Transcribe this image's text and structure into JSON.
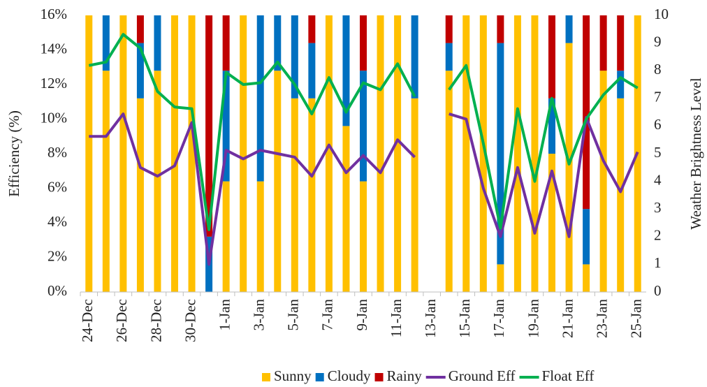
{
  "chart_data": {
    "type": "bar_line",
    "categories": [
      "24-Dec",
      null,
      "26-Dec",
      null,
      "28-Dec",
      null,
      "30-Dec",
      null,
      "1-Jan",
      null,
      "3-Jan",
      null,
      "5-Jan",
      null,
      "7-Jan",
      null,
      "9-Jan",
      null,
      "11-Jan",
      null,
      "13-Jan",
      null,
      "15-Jan",
      null,
      "17-Jan",
      null,
      "19-Jan",
      null,
      "21-Jan",
      null,
      "23-Jan",
      null,
      "25-Jan"
    ],
    "y_label": "Efficiency (%)",
    "y2_label": "Weather Brightness Level",
    "ylim": [
      0,
      16
    ],
    "yticks": [
      {
        "value": 0,
        "label": "0%"
      },
      {
        "value": 2,
        "label": "2%"
      },
      {
        "value": 4,
        "label": "4%"
      },
      {
        "value": 6,
        "label": "6%"
      },
      {
        "value": 8,
        "label": "8%"
      },
      {
        "value": 10,
        "label": "10%"
      },
      {
        "value": 12,
        "label": "12%"
      },
      {
        "value": 14,
        "label": "14%"
      },
      {
        "value": 16,
        "label": "16%"
      }
    ],
    "y2lim": [
      0,
      10
    ],
    "y2ticks": [
      0,
      1,
      2,
      3,
      4,
      5,
      6,
      7,
      8,
      9,
      10
    ],
    "legend": "bottom",
    "series": [
      {
        "name": "Sunny",
        "kind": "bar",
        "axis": "y2",
        "color": "#ffc000",
        "values": [
          10,
          8,
          10,
          7,
          8,
          10,
          10,
          0,
          4,
          10,
          4,
          8,
          7,
          7,
          10,
          6,
          4,
          10,
          10,
          7,
          null,
          8,
          10,
          10,
          1,
          10,
          10,
          5,
          9,
          1,
          8,
          7,
          10
        ]
      },
      {
        "name": "Cloudy",
        "kind": "bar",
        "axis": "y2",
        "color": "#0070c0",
        "values": [
          0,
          2,
          0,
          2,
          2,
          0,
          0,
          2,
          4,
          0,
          6,
          2,
          3,
          2,
          0,
          4,
          4,
          0,
          0,
          3,
          null,
          1,
          0,
          0,
          8,
          0,
          0,
          2,
          1,
          2,
          0,
          1,
          0
        ]
      },
      {
        "name": "Rainy",
        "kind": "bar",
        "axis": "y2",
        "color": "#c00000",
        "values": [
          0,
          0,
          0,
          1,
          0,
          0,
          0,
          8,
          2,
          0,
          0,
          0,
          0,
          1,
          0,
          0,
          2,
          0,
          0,
          0,
          null,
          1,
          0,
          0,
          1,
          0,
          0,
          3,
          0,
          7,
          2,
          2,
          0
        ]
      },
      {
        "name": "Ground Eff",
        "kind": "line",
        "color": "#7030a0",
        "values": [
          9.0,
          9.0,
          10.3,
          7.2,
          6.7,
          7.3,
          9.8,
          1.6,
          8.2,
          7.7,
          8.2,
          8.0,
          7.8,
          6.7,
          8.5,
          6.9,
          7.9,
          6.9,
          8.8,
          7.8,
          null,
          10.3,
          10.0,
          6.0,
          3.2,
          7.2,
          3.4,
          7.0,
          3.2,
          10.1,
          7.6,
          5.8,
          8.1
        ]
      },
      {
        "name": "Float Eff",
        "kind": "line",
        "color": "#00b050",
        "values": [
          13.1,
          13.3,
          14.9,
          14.1,
          11.6,
          10.7,
          10.6,
          3.6,
          12.7,
          12.0,
          12.1,
          13.3,
          12.0,
          10.3,
          12.4,
          10.4,
          12.1,
          11.7,
          13.2,
          11.3,
          null,
          11.7,
          13.1,
          8.6,
          3.7,
          10.6,
          6.4,
          11.2,
          7.4,
          10.0,
          11.4,
          12.4,
          11.8
        ]
      }
    ]
  }
}
